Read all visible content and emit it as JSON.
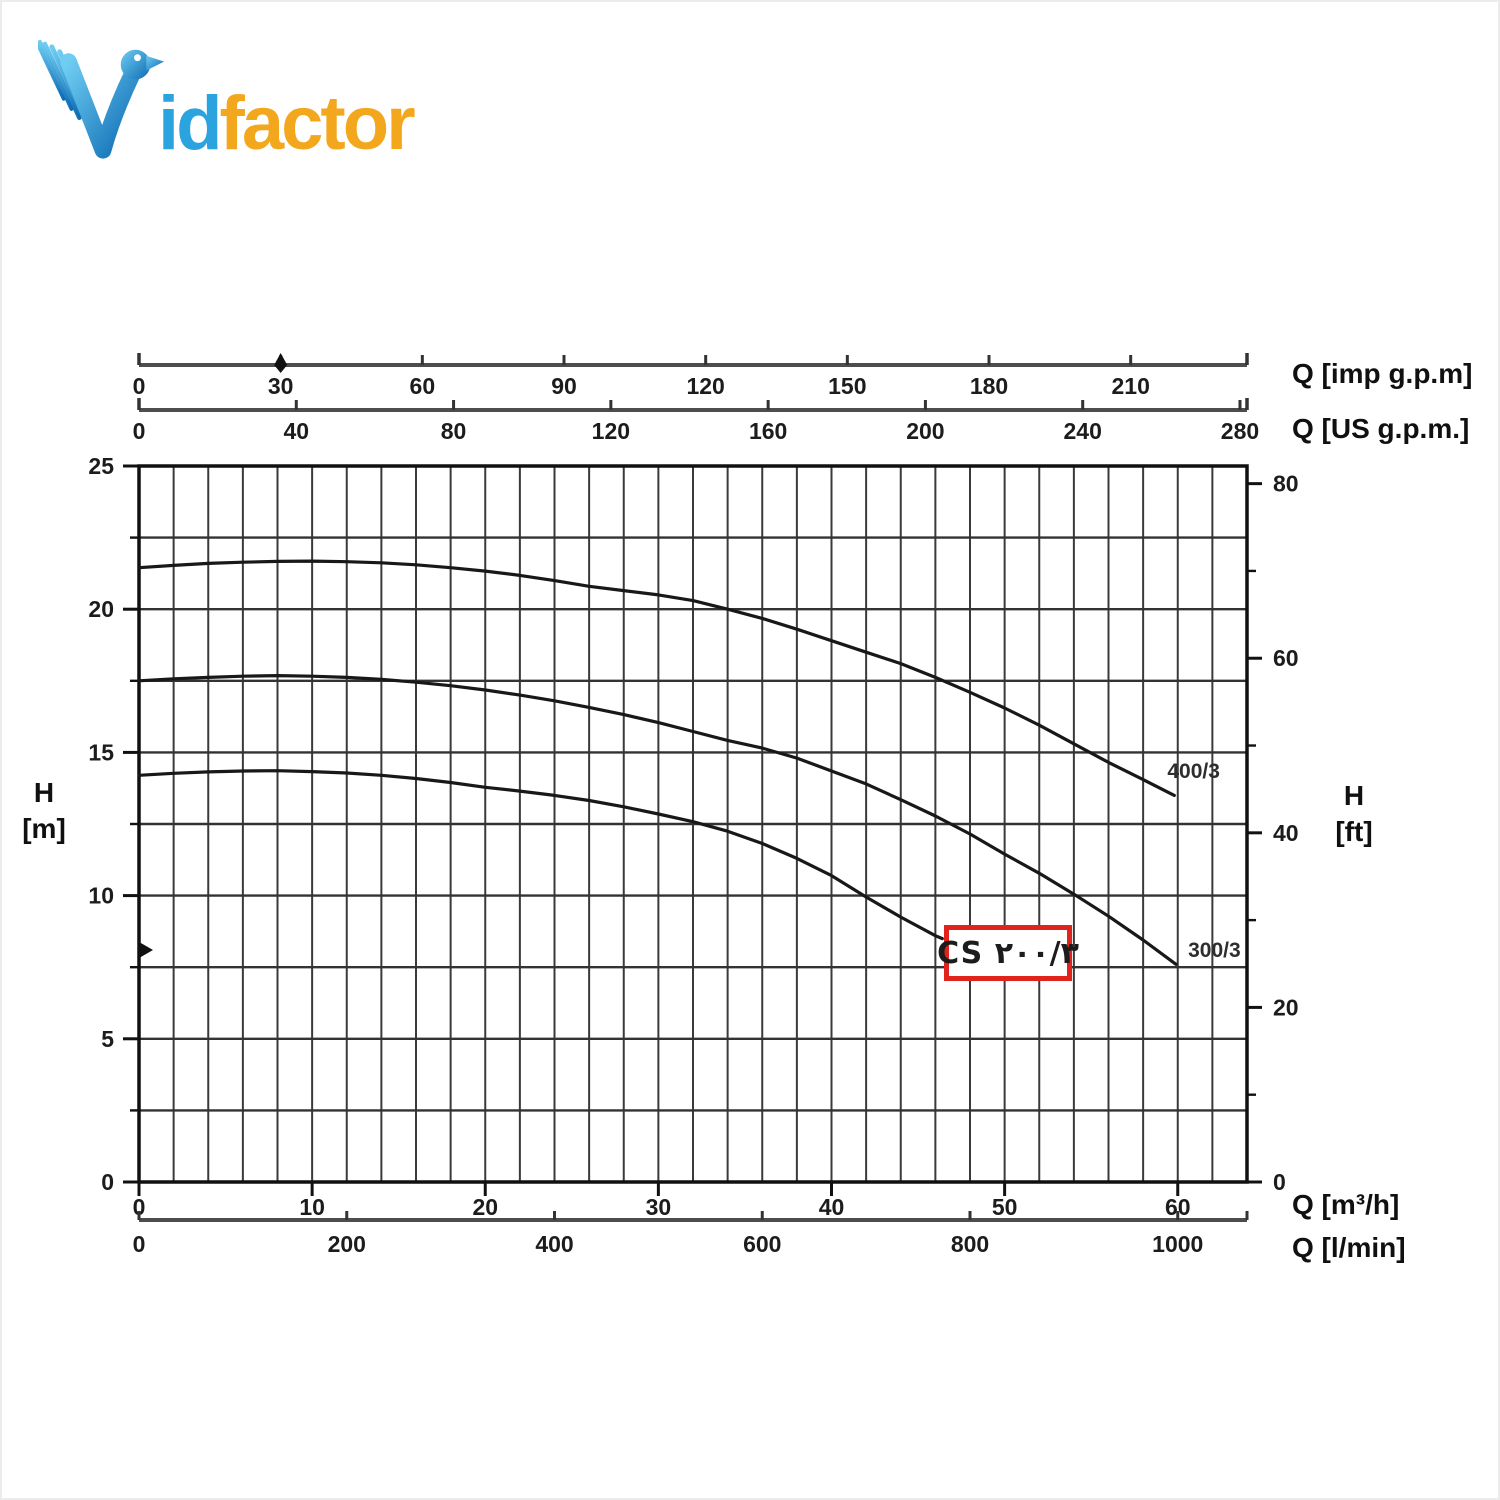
{
  "logo": {
    "brand": "Vidfactor",
    "blue_text": "id",
    "orange_text": "factor",
    "blue_color": "#2aa3de",
    "orange_color": "#f3a71d"
  },
  "chart_data": {
    "type": "line",
    "title": "",
    "grid": {
      "q_range": [
        0,
        64
      ],
      "q_step": 2,
      "h_range": [
        0,
        25
      ],
      "h_step": 2.5,
      "grid_on": true
    },
    "h_axis_left": {
      "label_lines": [
        "H",
        "[m]"
      ],
      "ticks": [
        25,
        20,
        15,
        10,
        5,
        0
      ],
      "minor_step": 2.5
    },
    "h_axis_right": {
      "label_lines": [
        "H",
        "[ft]"
      ],
      "major_ticks": [
        80,
        60,
        40,
        20,
        0
      ],
      "minor_ticks": [
        70,
        50,
        30,
        10
      ],
      "m_per_ft": 0.3048
    },
    "q_axes_top": [
      {
        "label": "Q [imp g.p.m]",
        "ticks": [
          0,
          30,
          60,
          90,
          120,
          150,
          180,
          210
        ],
        "m3h_per_unit": 0.272766,
        "marker_tick": 30
      },
      {
        "label": "Q [US g.p.m.]",
        "ticks": [
          0,
          40,
          80,
          120,
          160,
          200,
          240,
          280
        ],
        "m3h_per_unit": 0.227125
      }
    ],
    "q_axis_bottom_m3h": {
      "label": "Q [m³/h]",
      "ticks": [
        0,
        10,
        20,
        30,
        40,
        50,
        60
      ]
    },
    "q_axis_bottom_lmin": {
      "label": "Q [l/min]",
      "ticks": [
        0,
        200,
        400,
        600,
        800,
        1000
      ],
      "m3h_per_unit": 0.06
    },
    "series": [
      {
        "name": "400/3",
        "label_at": [
          59.4,
          14.1
        ],
        "points": [
          [
            0,
            21.45
          ],
          [
            2,
            21.53
          ],
          [
            4,
            21.6
          ],
          [
            6,
            21.64
          ],
          [
            8,
            21.67
          ],
          [
            10,
            21.68
          ],
          [
            12,
            21.66
          ],
          [
            14,
            21.62
          ],
          [
            16,
            21.55
          ],
          [
            18,
            21.45
          ],
          [
            20,
            21.33
          ],
          [
            22,
            21.18
          ],
          [
            24,
            21.0
          ],
          [
            26,
            20.8
          ],
          [
            28,
            20.65
          ],
          [
            30,
            20.5
          ],
          [
            32,
            20.3
          ],
          [
            34,
            20.0
          ],
          [
            36,
            19.68
          ],
          [
            38,
            19.3
          ],
          [
            40,
            18.9
          ],
          [
            42,
            18.5
          ],
          [
            44,
            18.1
          ],
          [
            46,
            17.62
          ],
          [
            48,
            17.1
          ],
          [
            50,
            16.55
          ],
          [
            52,
            15.95
          ],
          [
            54,
            15.3
          ],
          [
            56,
            14.65
          ],
          [
            58,
            14.05
          ],
          [
            59.8,
            13.5
          ]
        ]
      },
      {
        "name": "300/3",
        "label_at": [
          60.6,
          7.85
        ],
        "points": [
          [
            0,
            17.5
          ],
          [
            2,
            17.57
          ],
          [
            4,
            17.62
          ],
          [
            6,
            17.66
          ],
          [
            8,
            17.68
          ],
          [
            10,
            17.66
          ],
          [
            12,
            17.62
          ],
          [
            14,
            17.55
          ],
          [
            16,
            17.45
          ],
          [
            18,
            17.33
          ],
          [
            20,
            17.18
          ],
          [
            22,
            17.0
          ],
          [
            24,
            16.8
          ],
          [
            26,
            16.57
          ],
          [
            28,
            16.32
          ],
          [
            30,
            16.04
          ],
          [
            32,
            15.73
          ],
          [
            34,
            15.42
          ],
          [
            36,
            15.15
          ],
          [
            38,
            14.8
          ],
          [
            40,
            14.35
          ],
          [
            42,
            13.9
          ],
          [
            44,
            13.35
          ],
          [
            46,
            12.78
          ],
          [
            48,
            12.15
          ],
          [
            50,
            11.45
          ],
          [
            52,
            10.78
          ],
          [
            54,
            10.05
          ],
          [
            56,
            9.28
          ],
          [
            58,
            8.45
          ],
          [
            59.9,
            7.6
          ]
        ]
      },
      {
        "name": "CS 200/3",
        "label_at": null,
        "points": [
          [
            0,
            14.2
          ],
          [
            2,
            14.27
          ],
          [
            4,
            14.32
          ],
          [
            6,
            14.35
          ],
          [
            8,
            14.36
          ],
          [
            10,
            14.33
          ],
          [
            12,
            14.28
          ],
          [
            14,
            14.2
          ],
          [
            16,
            14.09
          ],
          [
            18,
            13.95
          ],
          [
            20,
            13.78
          ],
          [
            22,
            13.65
          ],
          [
            24,
            13.5
          ],
          [
            26,
            13.32
          ],
          [
            28,
            13.1
          ],
          [
            30,
            12.85
          ],
          [
            32,
            12.58
          ],
          [
            34,
            12.25
          ],
          [
            36,
            11.82
          ],
          [
            38,
            11.3
          ],
          [
            40,
            10.7
          ],
          [
            42,
            9.95
          ],
          [
            44,
            9.25
          ],
          [
            46,
            8.6
          ],
          [
            46.4,
            8.5
          ]
        ]
      }
    ],
    "highlight_box": {
      "text": "CS ۲۰۰/۳",
      "border_color": "#e0231c"
    },
    "duty_markers": {
      "left_axis_h_m": 8.1,
      "imp_axis_q": 30
    }
  }
}
